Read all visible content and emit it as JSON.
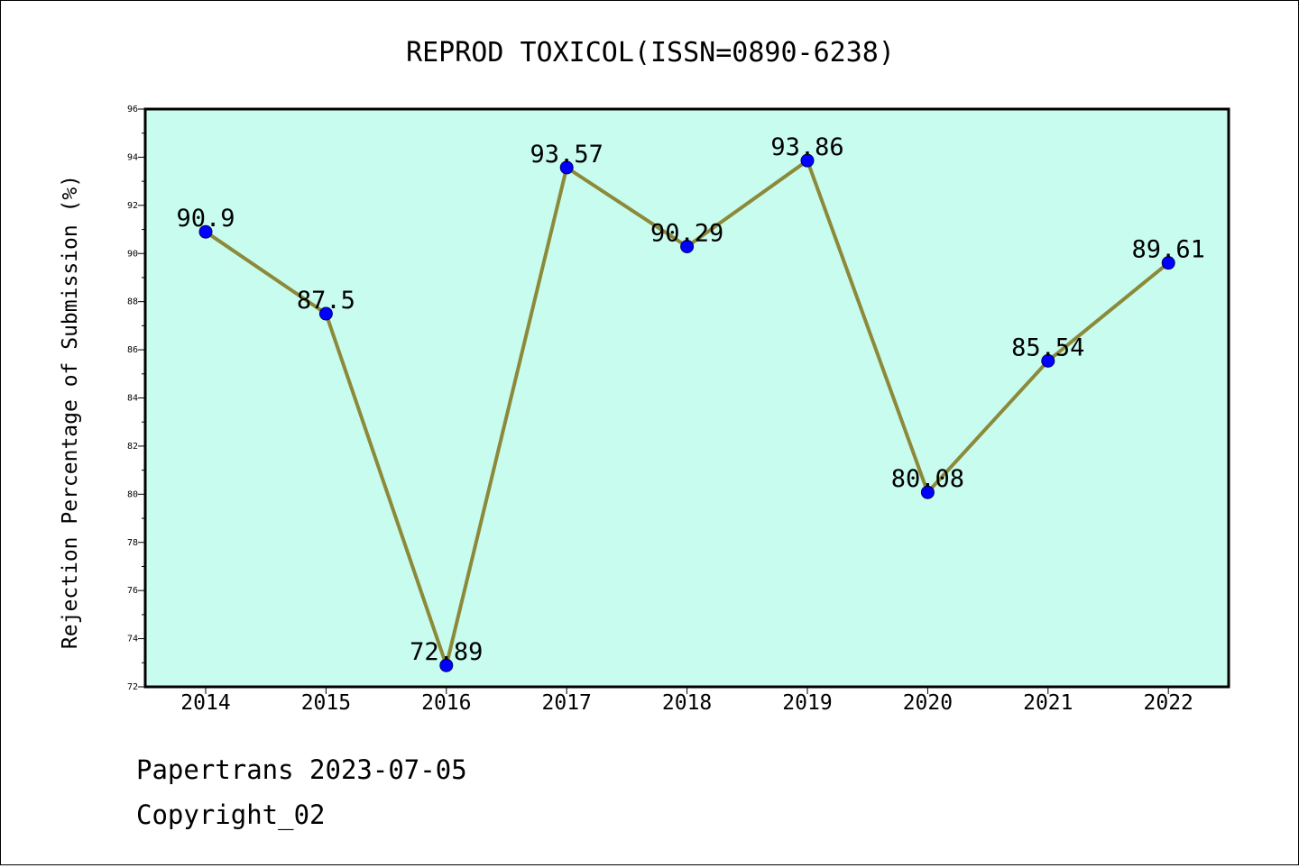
{
  "chart_data": {
    "type": "line",
    "title": "REPROD TOXICOL(ISSN=0890-6238)",
    "xlabel": "",
    "ylabel": "Rejection Percentage of Submission (%)",
    "categories": [
      "2014",
      "2015",
      "2016",
      "2017",
      "2018",
      "2019",
      "2020",
      "2021",
      "2022"
    ],
    "values": [
      90.9,
      87.5,
      72.89,
      93.57,
      90.29,
      93.86,
      80.08,
      85.54,
      89.61
    ],
    "data_labels": [
      "90.9",
      "87.5",
      "72.89",
      "93.57",
      "90.29",
      "93.86",
      "80.08",
      "85.54",
      "89.61"
    ],
    "ylim": [
      72,
      96
    ],
    "yticks": [
      72,
      74,
      76,
      78,
      80,
      82,
      84,
      86,
      88,
      90,
      92,
      94,
      96
    ],
    "grid": false,
    "legend": "none",
    "colors": {
      "plot_background": "#c8fcee",
      "line": "#8c8a3a",
      "marker": "#0000ff",
      "marker_edge": "#000066"
    }
  },
  "footer": {
    "line1": "Papertrans 2023-07-05",
    "line2": "Copyright_02"
  }
}
